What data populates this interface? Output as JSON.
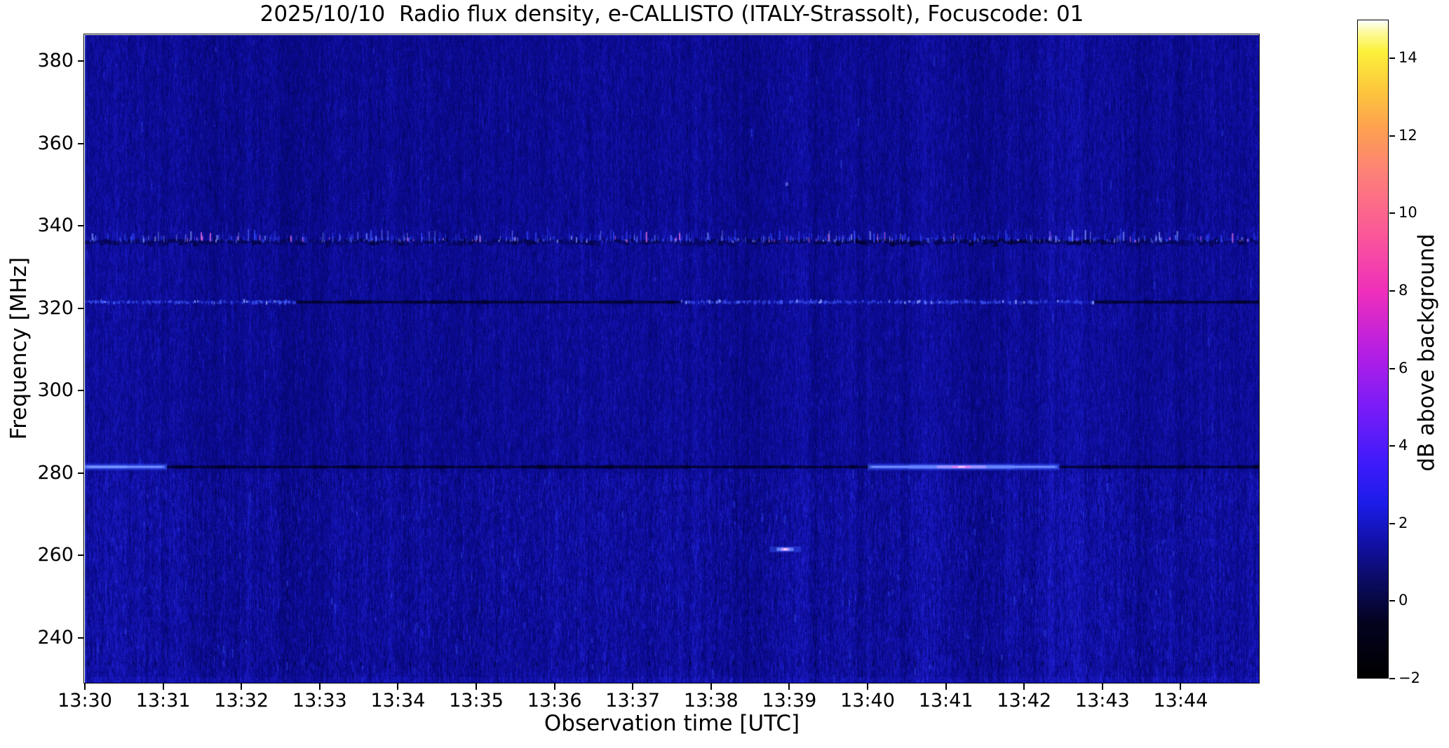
{
  "title": "2025/10/10  Radio flux density, e-CALLISTO (ITALY-Strassolt), Focuscode: 01",
  "axes": {
    "xlabel": "Observation time [UTC]",
    "ylabel": "Frequency [MHz]",
    "x_ticks": [
      "13:30",
      "13:31",
      "13:32",
      "13:33",
      "13:34",
      "13:35",
      "13:36",
      "13:37",
      "13:38",
      "13:39",
      "13:40",
      "13:41",
      "13:42",
      "13:43",
      "13:44"
    ],
    "y_ticks": [
      380,
      360,
      340,
      320,
      300,
      280,
      260,
      240
    ]
  },
  "colorbar": {
    "label": "dB above background",
    "ticks": [
      14,
      12,
      10,
      8,
      6,
      4,
      2,
      0,
      -2
    ],
    "range": [
      -2,
      15
    ],
    "gradient": [
      {
        "v": -2.0,
        "c": "#000000"
      },
      {
        "v": -0.6,
        "c": "#03031f"
      },
      {
        "v": 0.5,
        "c": "#0b0b62"
      },
      {
        "v": 1.5,
        "c": "#1111a8"
      },
      {
        "v": 2.5,
        "c": "#1c1ce8"
      },
      {
        "v": 3.5,
        "c": "#3c1bfa"
      },
      {
        "v": 5.0,
        "c": "#7a1cf8"
      },
      {
        "v": 6.5,
        "c": "#b81fe2"
      },
      {
        "v": 8.0,
        "c": "#ef2fba"
      },
      {
        "v": 9.5,
        "c": "#fb5898"
      },
      {
        "v": 11.0,
        "c": "#fd7f79"
      },
      {
        "v": 12.2,
        "c": "#fda050"
      },
      {
        "v": 13.2,
        "c": "#fdc73c"
      },
      {
        "v": 14.2,
        "c": "#fbf13a"
      },
      {
        "v": 14.7,
        "c": "#fdfa9e"
      },
      {
        "v": 15.0,
        "c": "#ffffff"
      }
    ]
  },
  "chart_data": {
    "type": "heatmap",
    "title": "2025/10/10  Radio flux density, e-CALLISTO (ITALY-Strassolt), Focuscode: 01",
    "xlabel": "Observation time [UTC]",
    "ylabel": "Frequency [MHz]",
    "x_start_utc": "13:30",
    "x_end_utc": "13:45",
    "x_span_minutes": 15,
    "x_ticks": [
      "13:30",
      "13:31",
      "13:32",
      "13:33",
      "13:34",
      "13:35",
      "13:36",
      "13:37",
      "13:38",
      "13:39",
      "13:40",
      "13:41",
      "13:42",
      "13:43",
      "13:44"
    ],
    "ylim": [
      229.1,
      386.3
    ],
    "y_ticks": [
      380,
      360,
      340,
      320,
      300,
      280,
      260,
      240
    ],
    "value_label": "dB above background",
    "value_range": [
      -2,
      15
    ],
    "background_db": 0,
    "background_color": "#0c0c94",
    "colormap": "black-navy-blue-violet-magenta-pink-orange-yellow-white",
    "grid": false,
    "legend": "colorbar-right",
    "features": [
      {
        "name": "rfi-band-336mhz",
        "kind": "speckle_band",
        "freq": 336.5,
        "half_height_mhz": 1.5,
        "t": [
          0,
          15
        ],
        "level_db": "1 to 8",
        "dark_patch_t": [
          9.5,
          13.2
        ],
        "desc": "persistent noisy interference band with bright vertical speckles and occasional pink peaks"
      },
      {
        "name": "rfi-line-321mhz",
        "kind": "segmented_line",
        "freq": 321.5,
        "segments": [
          {
            "t": [
              0,
              2.7
            ],
            "style": "speckle_bright",
            "level_db": 2
          },
          {
            "t": [
              2.7,
              7.6
            ],
            "style": "dark",
            "level_db": -1.5
          },
          {
            "t": [
              7.6,
              12.9
            ],
            "style": "speckle_bright",
            "level_db": 3
          },
          {
            "t": [
              12.9,
              15
            ],
            "style": "dark",
            "level_db": -1.5
          }
        ]
      },
      {
        "name": "rfi-line-281mhz",
        "kind": "segmented_line",
        "freq": 281.5,
        "segments": [
          {
            "t": [
              0,
              1.05
            ],
            "style": "glow_bright",
            "level_db": 3.5
          },
          {
            "t": [
              1.05,
              10.0
            ],
            "style": "dark",
            "level_db": -1.8
          },
          {
            "t": [
              10.0,
              12.45
            ],
            "style": "glow_bright",
            "level_db": 4.5,
            "peak_t": 11.2,
            "peak_db": 7.5
          },
          {
            "t": [
              12.45,
              15
            ],
            "style": "dark",
            "level_db": -1.5
          }
        ]
      },
      {
        "name": "burst-261mhz",
        "kind": "burst_spot",
        "freq": 261.5,
        "t": [
          8.75,
          9.15
        ],
        "peak_db": 11,
        "desc": "short bright burst near 13:39 with white-magenta core"
      },
      {
        "name": "faint-spot-350mhz",
        "kind": "faint_spot",
        "freq": 350.2,
        "t": [
          8.95,
          9.12
        ],
        "level_db": 2.5
      },
      {
        "name": "elevated-noise-below-280mhz",
        "kind": "noise_region",
        "freq_range": [
          229,
          280
        ],
        "extra_db": 0.5
      },
      {
        "name": "bright-bottom-edge",
        "kind": "noise_region",
        "freq_range": [
          229,
          230.5
        ],
        "extra_db": 1.5
      },
      {
        "name": "dark-tick-row-234mhz",
        "kind": "dark_dotted_row",
        "freq": 233.8
      }
    ]
  }
}
